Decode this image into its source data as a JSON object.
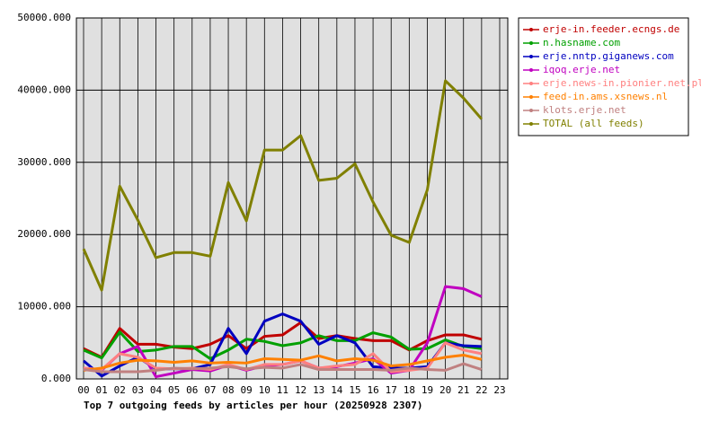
{
  "chart_data": {
    "type": "line",
    "title": "Top 7 outgoing feeds by articles per hour (20250928 2307)",
    "categories": [
      "00",
      "01",
      "02",
      "03",
      "04",
      "05",
      "06",
      "07",
      "08",
      "09",
      "10",
      "11",
      "12",
      "13",
      "14",
      "15",
      "16",
      "17",
      "18",
      "19",
      "20",
      "21",
      "22",
      "23"
    ],
    "ylim": [
      0,
      50000
    ],
    "yticks": [
      {
        "value": 0,
        "label": "0.000"
      },
      {
        "value": 10000,
        "label": "10000.000"
      },
      {
        "value": 20000,
        "label": "20000.000"
      },
      {
        "value": 30000,
        "label": "30000.000"
      },
      {
        "value": 40000,
        "label": "40000.000"
      },
      {
        "value": 50000,
        "label": "50000.000"
      }
    ],
    "grid": true,
    "legend": "right",
    "series": [
      {
        "name": "erje-in.feeder.ecngs.de",
        "color": "#c00000",
        "values": [
          4200,
          3000,
          7000,
          4800,
          4800,
          4400,
          4200,
          4800,
          6000,
          4200,
          5900,
          6100,
          7800,
          5600,
          6000,
          5600,
          5300,
          5300,
          4000,
          5300,
          6100,
          6100,
          5500,
          null
        ]
      },
      {
        "name": "n.hasname.com",
        "color": "#00a000",
        "values": [
          4000,
          2900,
          6500,
          3800,
          4000,
          4500,
          4500,
          2800,
          4000,
          5500,
          5200,
          4600,
          5000,
          6000,
          5300,
          5300,
          6400,
          5800,
          4100,
          4200,
          5400,
          4500,
          4200,
          null
        ]
      },
      {
        "name": "erje.nntp.giganews.com",
        "color": "#0000c0",
        "values": [
          2500,
          400,
          1800,
          3000,
          1400,
          1400,
          1400,
          2000,
          7000,
          3500,
          8000,
          9000,
          8000,
          4800,
          6000,
          5000,
          1700,
          1500,
          1500,
          1700,
          5000,
          4600,
          4500,
          null
        ]
      },
      {
        "name": "iqoq.erje.net",
        "color": "#c000c0",
        "values": [
          1500,
          1200,
          3500,
          4500,
          300,
          800,
          1300,
          1100,
          1900,
          1200,
          1800,
          2000,
          2500,
          1500,
          1700,
          2200,
          2800,
          800,
          1200,
          5000,
          12800,
          12500,
          11400,
          null
        ]
      },
      {
        "name": "erje.news-in.pionier.net.pl",
        "color": "#ff8080",
        "values": [
          1500,
          1300,
          3500,
          3000,
          1500,
          1400,
          1500,
          1300,
          2000,
          1300,
          2000,
          2000,
          2500,
          1500,
          1800,
          2000,
          3500,
          1000,
          1200,
          1500,
          5000,
          4000,
          3500,
          null
        ]
      },
      {
        "name": "feed-in.ams.xsnews.nl",
        "color": "#ff8000",
        "values": [
          1200,
          1500,
          2200,
          2600,
          2500,
          2300,
          2500,
          2200,
          2300,
          2200,
          2800,
          2700,
          2600,
          3200,
          2500,
          2800,
          2600,
          1800,
          2000,
          2500,
          3000,
          3300,
          2700,
          null
        ]
      },
      {
        "name": "klots.erje.net",
        "color": "#c08080",
        "values": [
          1300,
          1000,
          1000,
          1000,
          1200,
          1500,
          1400,
          1500,
          1700,
          1400,
          1600,
          1500,
          2000,
          1300,
          1300,
          1300,
          1300,
          1200,
          1500,
          1300,
          1200,
          2100,
          1300,
          null
        ]
      },
      {
        "name": "TOTAL (all feeds)",
        "color": "#808000",
        "values": [
          18000,
          12300,
          26700,
          22000,
          16800,
          17500,
          17500,
          17000,
          27200,
          21900,
          31700,
          31700,
          33700,
          27500,
          27800,
          29800,
          24500,
          19900,
          18900,
          26200,
          41300,
          38900,
          36000,
          null
        ]
      }
    ]
  }
}
